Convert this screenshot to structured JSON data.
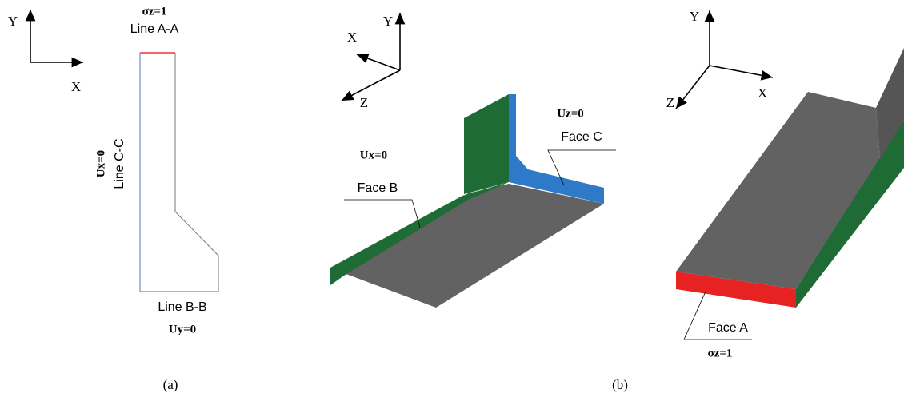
{
  "panel_a": {
    "axis_y": "Y",
    "axis_x": "X",
    "top_condition": "σz=1",
    "top_line": "Line A-A",
    "left_condition": "Ux=0",
    "left_line": "Line C-C",
    "bottom_line": "Line B-B",
    "bottom_condition": "Uy=0",
    "caption": "(a)"
  },
  "panel_b": {
    "left_view": {
      "axis_y": "Y",
      "axis_x": "X",
      "axis_z": "Z",
      "face_c_condition": "Uz=0",
      "face_c": "Face C",
      "face_b_condition": "Ux=0",
      "face_b": "Face B"
    },
    "right_view": {
      "axis_y": "Y",
      "axis_z": "Z",
      "axis_x": "X",
      "face_a": "Face A",
      "face_a_condition": "σz=1"
    },
    "caption": "(b)"
  }
}
